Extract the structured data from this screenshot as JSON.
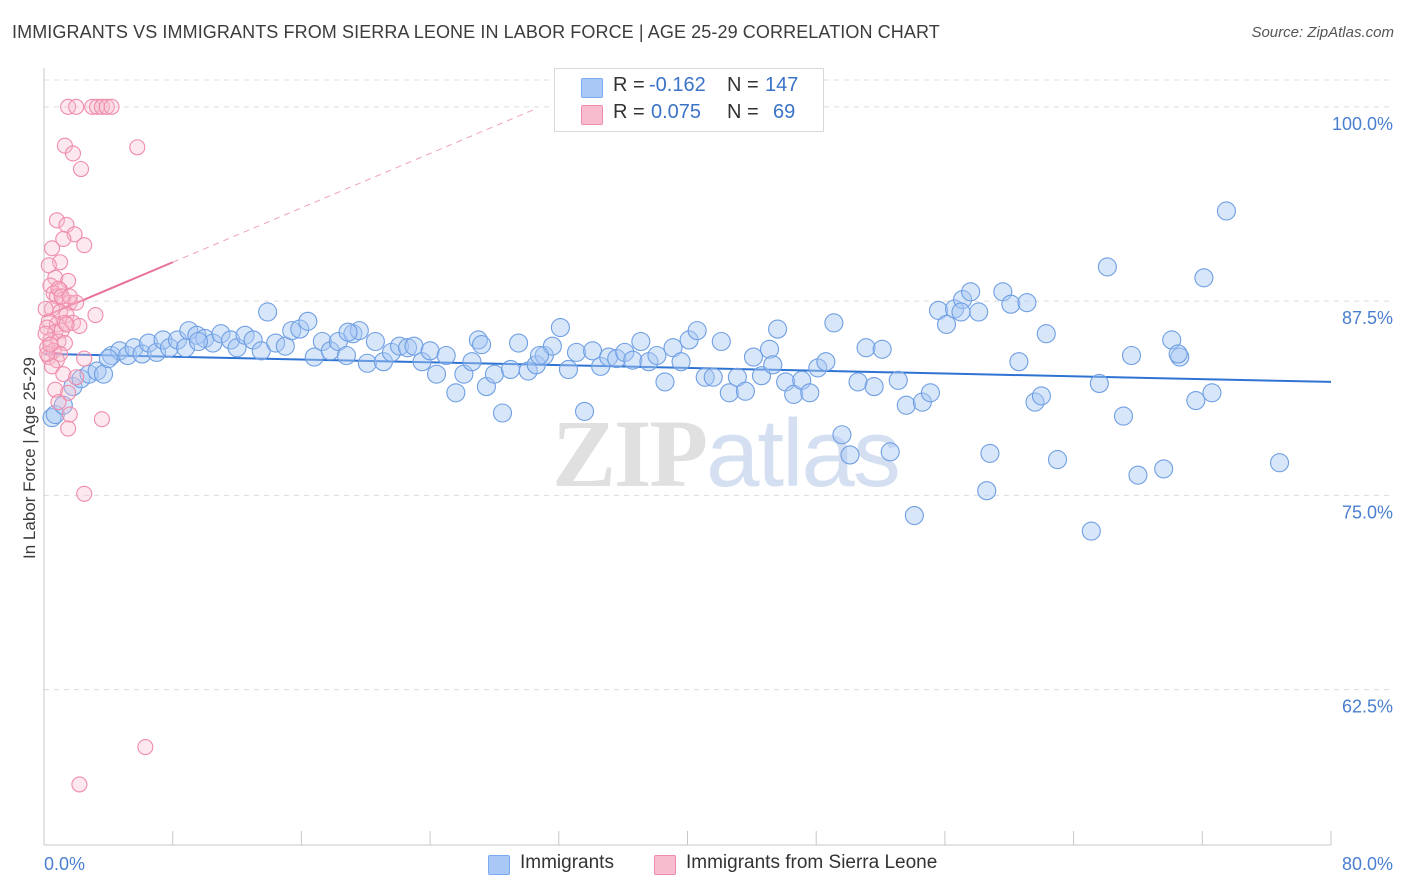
{
  "chart_data": {
    "type": "scatter",
    "title": "IMMIGRANTS VS IMMIGRANTS FROM SIERRA LEONE IN LABOR FORCE | AGE 25-29 CORRELATION CHART",
    "source": "Source: ZipAtlas.com",
    "xlabel": "",
    "ylabel": "In Labor Force | Age 25-29",
    "xlim": [
      0,
      80
    ],
    "ylim": [
      52.5,
      102.5
    ],
    "x_tick_labels": [
      "0.0%",
      "80.0%"
    ],
    "y_tick_labels": [
      "100.0%",
      "87.5%",
      "75.0%",
      "62.5%"
    ],
    "y_tick_values": [
      100,
      87.5,
      75,
      62.5
    ],
    "grid": true,
    "watermark": {
      "zip": "ZIP",
      "atlas": "atlas"
    },
    "legend": {
      "r_label": "R =",
      "n_label": "N =",
      "entries": [
        {
          "name": "Immigrants",
          "r": "-0.162",
          "n": "147",
          "color": "#7aaaf0",
          "fill": "#a9c8f5"
        },
        {
          "name": "Immigrants from Sierra Leone",
          "r": "0.075",
          "n": "69",
          "color": "#f08cab",
          "fill": "#f7bccd"
        }
      ]
    },
    "series": [
      {
        "name": "Immigrants",
        "color": "#5b8fd8",
        "trend": {
          "x": [
            0,
            80
          ],
          "y": [
            84.1,
            82.3
          ]
        },
        "points": [
          [
            0.5,
            80.0
          ],
          [
            0.7,
            80.2
          ],
          [
            1.2,
            80.8
          ],
          [
            1.8,
            82.0
          ],
          [
            2.3,
            82.5
          ],
          [
            2.8,
            82.8
          ],
          [
            3.3,
            83.0
          ],
          [
            3.7,
            82.8
          ],
          [
            4.2,
            84.0
          ],
          [
            4.7,
            84.3
          ],
          [
            5.2,
            84.0
          ],
          [
            5.6,
            84.5
          ],
          [
            6.1,
            84.1
          ],
          [
            6.5,
            84.8
          ],
          [
            7.0,
            84.2
          ],
          [
            7.4,
            85.0
          ],
          [
            7.8,
            84.5
          ],
          [
            8.3,
            85.0
          ],
          [
            8.8,
            84.5
          ],
          [
            9.0,
            85.6
          ],
          [
            9.5,
            85.3
          ],
          [
            10.0,
            85.1
          ],
          [
            10.5,
            84.8
          ],
          [
            11.0,
            85.4
          ],
          [
            11.6,
            85.0
          ],
          [
            12.0,
            84.5
          ],
          [
            12.5,
            85.3
          ],
          [
            13.0,
            85.0
          ],
          [
            13.5,
            84.3
          ],
          [
            13.9,
            86.8
          ],
          [
            14.4,
            84.8
          ],
          [
            15.0,
            84.6
          ],
          [
            15.4,
            85.6
          ],
          [
            15.9,
            85.7
          ],
          [
            16.4,
            86.2
          ],
          [
            16.8,
            83.9
          ],
          [
            17.3,
            84.9
          ],
          [
            17.8,
            84.3
          ],
          [
            18.3,
            84.9
          ],
          [
            18.8,
            84.0
          ],
          [
            19.2,
            85.4
          ],
          [
            19.6,
            85.6
          ],
          [
            20.1,
            83.5
          ],
          [
            20.6,
            84.9
          ],
          [
            21.1,
            83.6
          ],
          [
            21.6,
            84.2
          ],
          [
            22.1,
            84.6
          ],
          [
            22.6,
            84.5
          ],
          [
            23.0,
            84.6
          ],
          [
            23.5,
            83.6
          ],
          [
            24.0,
            84.3
          ],
          [
            24.4,
            82.8
          ],
          [
            25.0,
            84.0
          ],
          [
            25.6,
            81.6
          ],
          [
            26.1,
            82.8
          ],
          [
            26.6,
            83.6
          ],
          [
            27.0,
            85.0
          ],
          [
            27.5,
            82.0
          ],
          [
            28.0,
            82.8
          ],
          [
            28.5,
            80.3
          ],
          [
            29.0,
            83.1
          ],
          [
            29.5,
            84.8
          ],
          [
            30.1,
            83.0
          ],
          [
            30.6,
            83.4
          ],
          [
            31.1,
            84.0
          ],
          [
            31.6,
            84.6
          ],
          [
            32.1,
            85.8
          ],
          [
            32.6,
            83.1
          ],
          [
            33.1,
            84.2
          ],
          [
            33.6,
            80.4
          ],
          [
            34.1,
            84.3
          ],
          [
            34.6,
            83.3
          ],
          [
            35.1,
            83.9
          ],
          [
            35.6,
            83.8
          ],
          [
            36.1,
            84.2
          ],
          [
            36.6,
            83.7
          ],
          [
            37.1,
            84.9
          ],
          [
            37.6,
            83.6
          ],
          [
            38.1,
            84.0
          ],
          [
            38.6,
            82.3
          ],
          [
            39.1,
            84.5
          ],
          [
            39.6,
            83.6
          ],
          [
            40.1,
            85.0
          ],
          [
            40.6,
            85.6
          ],
          [
            41.1,
            82.6
          ],
          [
            41.6,
            82.6
          ],
          [
            42.1,
            84.9
          ],
          [
            42.6,
            81.6
          ],
          [
            43.1,
            82.6
          ],
          [
            43.6,
            81.7
          ],
          [
            44.1,
            83.9
          ],
          [
            44.6,
            82.7
          ],
          [
            45.1,
            84.4
          ],
          [
            45.6,
            85.7
          ],
          [
            46.1,
            82.3
          ],
          [
            46.6,
            81.5
          ],
          [
            47.1,
            82.4
          ],
          [
            47.6,
            81.6
          ],
          [
            48.1,
            83.2
          ],
          [
            48.6,
            83.6
          ],
          [
            49.1,
            86.1
          ],
          [
            49.6,
            78.9
          ],
          [
            50.1,
            77.6
          ],
          [
            50.6,
            82.3
          ],
          [
            51.1,
            84.5
          ],
          [
            51.6,
            82.0
          ],
          [
            52.1,
            84.4
          ],
          [
            52.6,
            77.8
          ],
          [
            53.1,
            82.4
          ],
          [
            53.6,
            80.8
          ],
          [
            54.1,
            73.7
          ],
          [
            54.6,
            81.0
          ],
          [
            55.1,
            81.6
          ],
          [
            55.6,
            86.9
          ],
          [
            56.1,
            86.0
          ],
          [
            56.6,
            87.0
          ],
          [
            57.1,
            87.6
          ],
          [
            57.6,
            88.1
          ],
          [
            58.1,
            86.8
          ],
          [
            58.6,
            75.3
          ],
          [
            58.8,
            77.7
          ],
          [
            59.6,
            88.1
          ],
          [
            60.1,
            87.3
          ],
          [
            60.6,
            83.6
          ],
          [
            61.1,
            87.4
          ],
          [
            61.6,
            81.0
          ],
          [
            62.3,
            85.4
          ],
          [
            63.0,
            77.3
          ],
          [
            65.1,
            72.7
          ],
          [
            65.6,
            82.2
          ],
          [
            66.1,
            89.7
          ],
          [
            67.1,
            80.1
          ],
          [
            67.6,
            84.0
          ],
          [
            68.0,
            76.3
          ],
          [
            69.6,
            76.7
          ],
          [
            70.1,
            85.0
          ],
          [
            70.6,
            83.9
          ],
          [
            71.6,
            81.1
          ],
          [
            72.1,
            89.0
          ],
          [
            72.6,
            81.6
          ],
          [
            73.5,
            93.3
          ],
          [
            76.8,
            77.1
          ],
          [
            70.5,
            84.1
          ],
          [
            57.0,
            86.8
          ],
          [
            45.3,
            83.4
          ],
          [
            30.8,
            84.0
          ],
          [
            18.9,
            85.5
          ],
          [
            9.6,
            84.9
          ],
          [
            4.0,
            83.8
          ],
          [
            27.2,
            84.7
          ],
          [
            62.0,
            81.4
          ]
        ]
      },
      {
        "name": "Immigrants from Sierra Leone",
        "color": "#f08cab",
        "trend": {
          "x": [
            0,
            8
          ],
          "y": [
            86.5,
            90.0
          ]
        },
        "points": [
          [
            1.5,
            100.0
          ],
          [
            2.0,
            100.0
          ],
          [
            3.0,
            100.0
          ],
          [
            3.3,
            100.0
          ],
          [
            3.6,
            100.0
          ],
          [
            3.9,
            100.0
          ],
          [
            4.2,
            100.0
          ],
          [
            1.3,
            97.5
          ],
          [
            1.8,
            97.0
          ],
          [
            2.3,
            96.0
          ],
          [
            5.8,
            97.4
          ],
          [
            0.8,
            92.7
          ],
          [
            1.4,
            92.4
          ],
          [
            1.9,
            91.8
          ],
          [
            1.2,
            91.5
          ],
          [
            2.5,
            91.1
          ],
          [
            0.5,
            90.9
          ],
          [
            1.0,
            90.0
          ],
          [
            0.3,
            89.8
          ],
          [
            0.7,
            89.0
          ],
          [
            1.5,
            88.8
          ],
          [
            0.4,
            88.5
          ],
          [
            1.0,
            88.2
          ],
          [
            0.6,
            88.0
          ],
          [
            0.8,
            87.8
          ],
          [
            1.2,
            87.6
          ],
          [
            1.6,
            87.4
          ],
          [
            2.0,
            87.4
          ],
          [
            0.5,
            87.0
          ],
          [
            1.0,
            86.8
          ],
          [
            1.4,
            86.6
          ],
          [
            3.2,
            86.6
          ],
          [
            0.3,
            86.2
          ],
          [
            0.8,
            86.0
          ],
          [
            1.3,
            86.1
          ],
          [
            0.2,
            85.8
          ],
          [
            0.7,
            85.5
          ],
          [
            1.1,
            85.6
          ],
          [
            0.4,
            85.0
          ],
          [
            0.9,
            84.9
          ],
          [
            1.3,
            84.8
          ],
          [
            0.2,
            84.5
          ],
          [
            0.6,
            84.3
          ],
          [
            1.0,
            84.1
          ],
          [
            0.3,
            83.9
          ],
          [
            0.8,
            83.7
          ],
          [
            2.5,
            83.8
          ],
          [
            0.5,
            83.3
          ],
          [
            1.2,
            82.8
          ],
          [
            2.0,
            82.6
          ],
          [
            0.7,
            81.8
          ],
          [
            1.5,
            81.6
          ],
          [
            0.9,
            81.0
          ],
          [
            1.6,
            80.2
          ],
          [
            3.6,
            79.9
          ],
          [
            1.5,
            79.3
          ],
          [
            2.5,
            75.1
          ],
          [
            0.2,
            84.1
          ],
          [
            0.1,
            85.4
          ],
          [
            0.1,
            87.0
          ],
          [
            0.4,
            84.7
          ],
          [
            1.8,
            86.1
          ],
          [
            2.2,
            85.9
          ],
          [
            0.9,
            88.3
          ],
          [
            1.1,
            87.8
          ],
          [
            1.4,
            86.0
          ],
          [
            6.3,
            58.8
          ],
          [
            2.2,
            56.4
          ],
          [
            1.6,
            87.8
          ]
        ]
      }
    ]
  }
}
